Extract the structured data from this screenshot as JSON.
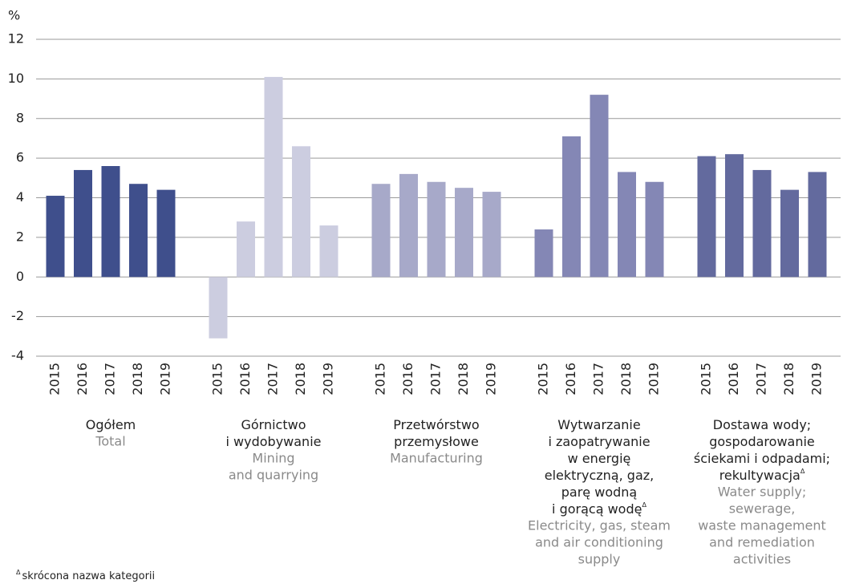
{
  "chart_data": {
    "type": "bar",
    "y_label": "%",
    "ylim": [
      -4,
      12
    ],
    "yticks": [
      -4,
      -2,
      0,
      2,
      4,
      6,
      8,
      10,
      12
    ],
    "grid": true,
    "groups": [
      {
        "label_pl": [
          {
            "text": "Ogółem"
          }
        ],
        "label_en": [
          "Total"
        ],
        "color": "#3f4f8c",
        "categories": [
          "2015",
          "2016",
          "2017",
          "2018",
          "2019"
        ],
        "values": [
          4.1,
          5.4,
          5.6,
          4.7,
          4.4
        ]
      },
      {
        "label_pl": [
          {
            "text": "Górnictwo"
          },
          {
            "text": "i wydobywanie"
          }
        ],
        "label_en": [
          "Mining",
          "and quarrying"
        ],
        "color": "#cccde0",
        "categories": [
          "2015",
          "2016",
          "2017",
          "2018",
          "2019"
        ],
        "values": [
          -3.1,
          2.8,
          10.1,
          6.6,
          2.6
        ]
      },
      {
        "label_pl": [
          {
            "text": "Przetwórstwo"
          },
          {
            "text": "przemysłowe"
          }
        ],
        "label_en": [
          "Manufacturing"
        ],
        "color": "#a7a9c9",
        "categories": [
          "2015",
          "2016",
          "2017",
          "2018",
          "2019"
        ],
        "values": [
          4.7,
          5.2,
          4.8,
          4.5,
          4.3
        ]
      },
      {
        "label_pl": [
          {
            "text": "Wytwarzanie"
          },
          {
            "text": "i zaopatrywanie"
          },
          {
            "text": "w energię"
          },
          {
            "text": "elektryczną, gaz,"
          },
          {
            "text": "parę wodną"
          },
          {
            "text": "i gorącą wodę",
            "sup": "Δ"
          }
        ],
        "label_en": [
          "Electricity, gas, steam",
          "and air conditioning",
          "supply"
        ],
        "color": "#8487b5",
        "categories": [
          "2015",
          "2016",
          "2017",
          "2018",
          "2019"
        ],
        "values": [
          2.4,
          7.1,
          9.2,
          5.3,
          4.8
        ]
      },
      {
        "label_pl": [
          {
            "text": "Dostawa wody;"
          },
          {
            "text": "gospodarowanie"
          },
          {
            "text": "ściekami i odpadami;"
          },
          {
            "text": "rekultywacja",
            "sup": "Δ"
          }
        ],
        "label_en": [
          "Water supply;",
          "sewerage,",
          "waste management",
          "and remediation",
          "activities"
        ],
        "color": "#636a9e",
        "categories": [
          "2015",
          "2016",
          "2017",
          "2018",
          "2019"
        ],
        "values": [
          6.1,
          6.2,
          5.4,
          4.4,
          5.3
        ]
      }
    ],
    "footnote": {
      "sup": "Δ",
      "text": "skrócona nazwa kategorii"
    }
  }
}
